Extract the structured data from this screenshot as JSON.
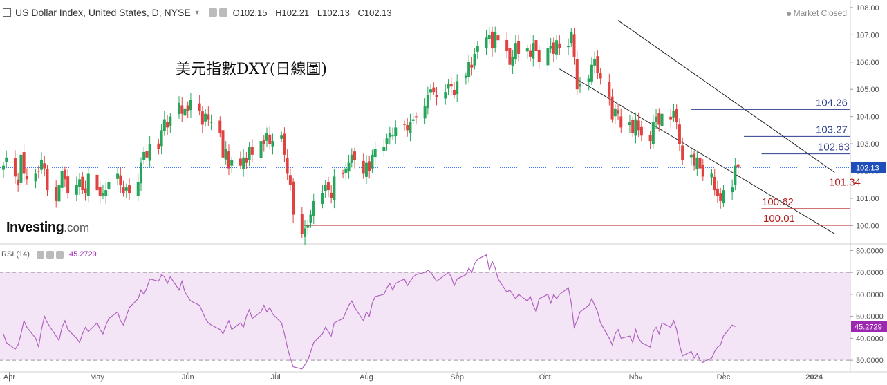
{
  "header": {
    "title": "US Dollar Index, United States, D, NYSE",
    "open": "O102.15",
    "high": "H102.21",
    "low": "L102.13",
    "close": "C102.13",
    "status": "Market Closed"
  },
  "annotation": "美元指數DXY(日線圖)",
  "logo": {
    "name": "Investing",
    "suffix": ".com"
  },
  "chart_data": [
    {
      "type": "candlestick",
      "title": "US Dollar Index, United States, D, NYSE",
      "ylim": [
        99.35,
        108.15
      ],
      "y_ticks": [
        "108.00",
        "107.00",
        "106.00",
        "105.00",
        "104.00",
        "103.00",
        "102.00",
        "101.00",
        "100.00"
      ],
      "x_ticks": [
        "Apr",
        "May",
        "Jun",
        "Jul",
        "Aug",
        "Sep",
        "Oct",
        "Nov",
        "Dec",
        "2024"
      ],
      "last_price": "102.13",
      "colors": {
        "up": "#26a65b",
        "down": "#e0433f",
        "channel": "#222222",
        "level_blue": "#2e3f8f",
        "level_red": "#b31b1b"
      },
      "levels": [
        {
          "label": "104.26",
          "value": 104.26,
          "color": "#2e3f8f"
        },
        {
          "label": "103.27",
          "value": 103.27,
          "color": "#2e3f8f"
        },
        {
          "label": "102.63",
          "value": 102.63,
          "color": "#2e3f8f"
        },
        {
          "label": "101.34",
          "value": 101.34,
          "color": "#b31b1b"
        },
        {
          "label": "100.62",
          "value": 100.62,
          "color": "#b31b1b"
        },
        {
          "label": "100.01",
          "value": 100.01,
          "color": "#b31b1b"
        }
      ],
      "closes": [
        102.2,
        102.5,
        101.8,
        101.5,
        102.6,
        101.9,
        101.7,
        101.9,
        102.0,
        102.4,
        102.1,
        101.3,
        100.9,
        101.5,
        102.0,
        101.7,
        101.2,
        101.5,
        101.7,
        101.3,
        101.2,
        101.9,
        101.3,
        101.1,
        101.2,
        101.3,
        101.6,
        101.9,
        101.5,
        101.2,
        101.4,
        101.2,
        101.6,
        102.3,
        102.7,
        102.5,
        103.0,
        102.8,
        103.5,
        103.9,
        103.6,
        104.0,
        104.5,
        104.1,
        104.3,
        104.2,
        104.6,
        104.2,
        103.7,
        104.1,
        103.9,
        103.8,
        103.4,
        102.5,
        102.8,
        102.1,
        102.4,
        102.2,
        102.5,
        102.3,
        102.9,
        102.6,
        103.1,
        103.0,
        103.4,
        103.0,
        103.1,
        103.3,
        102.6,
        101.9,
        101.5,
        100.4,
        99.7,
        99.9,
        100.0,
        100.4,
        100.9,
        101.2,
        101.5,
        101.3,
        101.0,
        101.8,
        101.9,
        102.1,
        102.3,
        102.6,
        102.4,
        101.9,
        102.3,
        102.0,
        102.6,
        102.8,
        102.9,
        103.2,
        103.4,
        103.3,
        103.6,
        103.7,
        103.5,
        103.8,
        103.9,
        104.0,
        104.4,
        104.8,
        105.0,
        104.9,
        104.7,
        104.9,
        105.2,
        105.1,
        104.8,
        105.3,
        105.5,
        106.0,
        105.8,
        106.3,
        106.6,
        106.9,
        107.0,
        106.5,
        107.1,
        106.8,
        106.4,
        105.9,
        106.2,
        106.7,
        106.3,
        106.5,
        106.2,
        106.7,
        106.4,
        106.0,
        106.5,
        106.6,
        106.3,
        106.8,
        106.5,
        106.6,
        107.1,
        106.2,
        105.0,
        105.2,
        105.4,
        105.9,
        106.1,
        105.6,
        105.4,
        104.7,
        103.9,
        104.3,
        104.1,
        103.6,
        103.8,
        103.4,
        103.9,
        103.5,
        103.3,
        103.1,
        103.8,
        104.0,
        103.7,
        104.1,
        103.9,
        104.2,
        103.8,
        103.0,
        102.4,
        102.6,
        102.2,
        102.5,
        102.1,
        101.8,
        101.9,
        101.3,
        101.1,
        100.9,
        101.3,
        101.4,
        102.2,
        102.13
      ],
      "channel": {
        "upper": [
          [
            "2023-10-26",
            107.35
          ],
          [
            "2024-01-08",
            101.95
          ]
        ],
        "lower": [
          [
            "2023-10-06",
            105.75
          ],
          [
            "2024-01-08",
            99.85
          ]
        ]
      }
    },
    {
      "type": "line",
      "title": "RSI (14)",
      "value_label": "45.2729",
      "ylim": [
        25,
        82
      ],
      "y_ticks": [
        "80.0000",
        "70.0000",
        "60.0000",
        "50.0000",
        "40.0000",
        "30.0000"
      ],
      "band": [
        30,
        70
      ],
      "color": "#b060c0",
      "values": [
        42,
        38,
        35,
        37,
        42,
        48,
        45,
        40,
        36,
        44,
        50,
        47,
        41,
        39,
        45,
        48,
        44,
        40,
        38,
        42,
        45,
        43,
        47,
        44,
        42,
        46,
        49,
        52,
        48,
        46,
        50,
        54,
        58,
        62,
        60,
        63,
        67,
        66,
        69,
        68,
        65,
        68,
        62,
        66,
        61,
        59,
        57,
        55,
        52,
        49,
        47,
        46,
        44,
        42,
        45,
        48,
        44,
        47,
        45,
        50,
        53,
        49,
        52,
        55,
        52,
        54,
        51,
        47,
        42,
        36,
        31,
        27,
        26,
        28,
        30,
        34,
        38,
        42,
        45,
        43,
        41,
        47,
        49,
        52,
        55,
        57,
        54,
        48,
        52,
        50,
        56,
        59,
        60,
        63,
        65,
        62,
        65,
        67,
        64,
        66,
        68,
        69,
        70,
        71,
        70,
        68,
        66,
        69,
        70,
        68,
        64,
        67,
        69,
        72,
        70,
        74,
        76,
        78,
        71,
        75,
        72,
        67,
        61,
        62,
        60,
        58,
        60,
        57,
        59,
        55,
        52,
        58,
        60,
        56,
        60,
        58,
        60,
        63,
        56,
        45,
        48,
        52,
        55,
        58,
        55,
        52,
        47,
        40,
        37,
        42,
        44,
        40,
        41,
        38,
        44,
        40,
        38,
        36,
        43,
        45,
        42,
        47,
        45,
        48,
        44,
        37,
        32,
        34,
        31,
        33,
        30,
        29,
        31,
        34,
        36,
        37,
        41,
        46,
        45.27
      ]
    }
  ]
}
